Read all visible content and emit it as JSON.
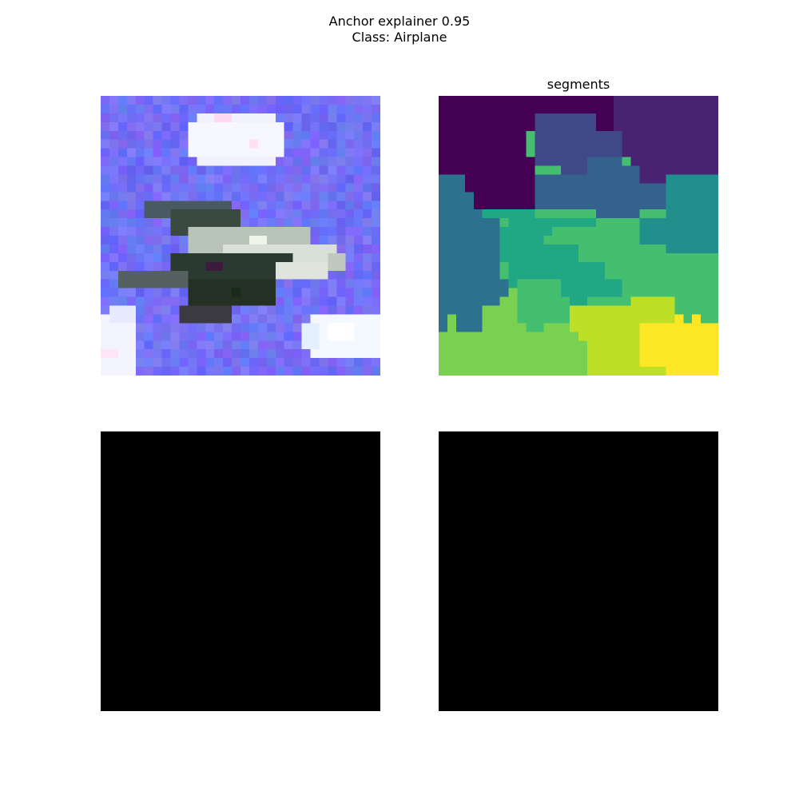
{
  "figure": {
    "title_line1": "Anchor explainer 0.95",
    "title_line2": "Class: Airplane"
  },
  "panels": {
    "input_image": {
      "title": ""
    },
    "segments": {
      "title": "segments"
    },
    "anchor_mask_1": {
      "title": "",
      "fill": "#000000"
    },
    "anchor_mask_2": {
      "title": "",
      "fill": "#000000"
    }
  },
  "colors": {
    "sky": "#6e6cf4",
    "cloud": "#f2f2ff",
    "plane_dark": "#2a3a30",
    "plane_light": "#c8d0c8",
    "seg_0": "#440154",
    "seg_1": "#482374",
    "seg_2": "#3f4888",
    "seg_3": "#33638d",
    "seg_4": "#2c728e",
    "seg_5": "#21908d",
    "seg_6": "#22a785",
    "seg_7": "#44bf70",
    "seg_8": "#7ad151",
    "seg_9": "#bddf26",
    "seg_10": "#fde725"
  }
}
